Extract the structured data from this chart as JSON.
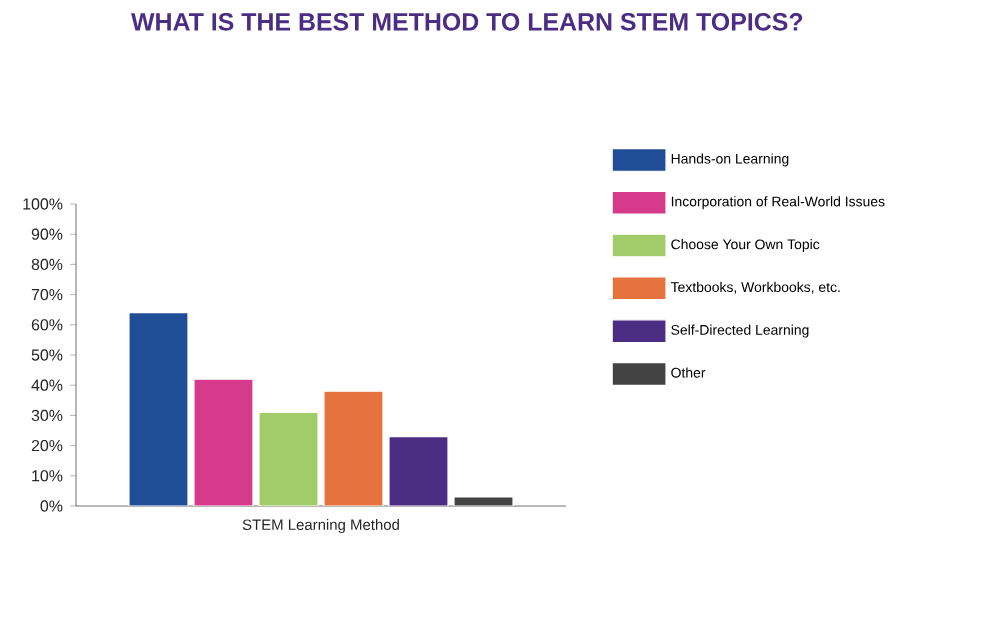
{
  "chart_data": {
    "type": "bar",
    "title": "WHAT IS THE BEST METHOD TO LEARN STEM TOPICS?",
    "categories": [
      "STEM Learning Method"
    ],
    "series": [
      {
        "name": "Hands-on Learning",
        "color": "#1f4e96",
        "values": [
          64
        ]
      },
      {
        "name": "Incorporation of Real-World Issues",
        "color": "#d63a8a",
        "values": [
          42
        ]
      },
      {
        "name": "Choose Your Own Topic",
        "color": "#a2cb6a",
        "values": [
          31
        ]
      },
      {
        "name": "Textbooks, Workbooks, etc.",
        "color": "#e5733d",
        "values": [
          38
        ]
      },
      {
        "name": "Self-Directed Learning",
        "color": "#4b2d83",
        "values": [
          23
        ]
      },
      {
        "name": "Other",
        "color": "#434343",
        "values": [
          3
        ]
      }
    ],
    "ylim": [
      0,
      100
    ],
    "yticks": [
      {
        "value": 0,
        "label": "0%"
      },
      {
        "value": 10,
        "label": "10%"
      },
      {
        "value": 20,
        "label": "20%"
      },
      {
        "value": 30,
        "label": "30%"
      },
      {
        "value": 40,
        "label": "40%"
      },
      {
        "value": 50,
        "label": "50%"
      },
      {
        "value": 60,
        "label": "60%"
      },
      {
        "value": 70,
        "label": "70%"
      },
      {
        "value": 80,
        "label": "80%"
      },
      {
        "value": 90,
        "label": "90%"
      },
      {
        "value": 100,
        "label": "100%"
      }
    ],
    "grid": false,
    "legend": "right"
  }
}
